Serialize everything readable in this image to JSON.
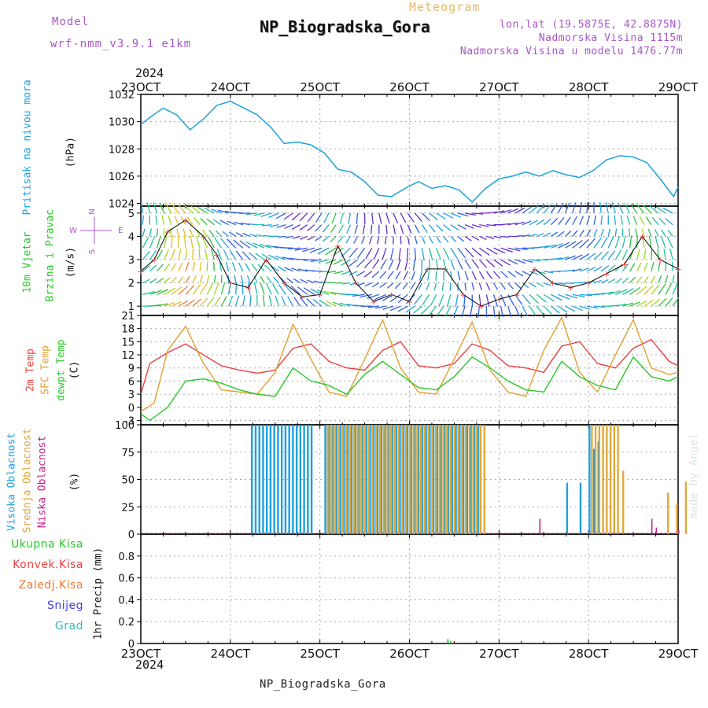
{
  "header": {
    "model_label": "Model",
    "model_name": "wrf-nmm_v3.9.1  e1km",
    "product": "Meteogram",
    "station": "NP_Biogradska_Gora",
    "coords": "lon,lat (19.5875E, 42.8875N)",
    "elevation": "Nadmorska Visina 1115m",
    "model_elevation": "Nadmorska Visina u modelu 1476.77m"
  },
  "time_axis": {
    "year": "2024",
    "labels": [
      "23OCT",
      "24OCT",
      "25OCT",
      "26OCT",
      "27OCT",
      "28OCT",
      "29OCT"
    ]
  },
  "footer": {
    "station": "NP_Biogradska_Gora",
    "credit": "made by Angel"
  },
  "panel_labels": {
    "pressure": "Pritisak na nivou mora",
    "pressure_unit": "(hPa)",
    "wind_a": "10m Vjetar",
    "wind_b": "Brzina i Pravac",
    "wind_unit": "(m/s)",
    "compass_n": "N",
    "compass_w": "W",
    "compass_e": "E",
    "compass_s": "S",
    "temp_2m": "2m Temp",
    "temp_sfc": "SFC Temp",
    "temp_dew": "dewpt Temp",
    "temp_unit": "(C)",
    "cloud_high": "Visoka Oblacnost",
    "cloud_mid": "Srednja Oblacnost",
    "cloud_low": "Niska Oblacnost",
    "cloud_unit": "(%)",
    "precip_axis": "1hr Precip (mm)",
    "precip_total": "Ukupna Kisa",
    "precip_conv": "Konvek.Kisa",
    "precip_frozen": "Zaledj.Kisa",
    "precip_snow": "Snijeg",
    "precip_hail": "Grad"
  },
  "colors": {
    "pressure": "#1aa3e0",
    "temp_2m": "#e84040",
    "temp_sfc": "#e0a030",
    "temp_dew": "#28c828",
    "cloud_high": "#1ea0e0",
    "cloud_mid": "#e0a83a",
    "cloud_low": "#c8208c",
    "precip_total": "#28c828",
    "precip_conv": "#e84040",
    "precip_frozen": "#f07830",
    "precip_snow": "#4040e0",
    "precip_hail": "#30c0b0",
    "purple": "#a855c8"
  },
  "chart_data": [
    {
      "type": "line",
      "panel": "pressure",
      "ylabel": "(hPa)",
      "ylim": [
        1023.8,
        1032
      ],
      "yticks": [
        1024,
        1026,
        1028,
        1030,
        1032
      ],
      "x_unit": "days since 23OCT 00Z",
      "series": [
        {
          "name": "Pritisak na nivou mora",
          "x": [
            0,
            0.1,
            0.25,
            0.4,
            0.55,
            0.7,
            0.85,
            1.0,
            1.15,
            1.3,
            1.45,
            1.6,
            1.75,
            1.9,
            2.05,
            2.2,
            2.35,
            2.5,
            2.65,
            2.8,
            2.95,
            3.1,
            3.25,
            3.4,
            3.55,
            3.7,
            3.85,
            4.0,
            4.15,
            4.3,
            4.45,
            4.6,
            4.75,
            4.9,
            5.05,
            5.2,
            5.35,
            5.5,
            5.65,
            5.8,
            5.95,
            6.0
          ],
          "values": [
            1029.8,
            1030.3,
            1031.0,
            1030.5,
            1029.4,
            1030.2,
            1031.2,
            1031.5,
            1031.0,
            1030.5,
            1029.6,
            1028.4,
            1028.5,
            1028.3,
            1027.7,
            1026.5,
            1026.3,
            1025.6,
            1024.6,
            1024.5,
            1025.1,
            1025.6,
            1025.1,
            1025.3,
            1025.0,
            1024.1,
            1025.1,
            1025.8,
            1026.0,
            1026.3,
            1026.0,
            1026.4,
            1026.1,
            1025.9,
            1026.4,
            1027.2,
            1027.5,
            1027.4,
            1027.0,
            1025.8,
            1024.5,
            1025.2
          ]
        }
      ]
    },
    {
      "type": "line",
      "panel": "wind",
      "ylabel": "(m/s)",
      "ylim": [
        0.6,
        5.3
      ],
      "yticks": [
        1,
        2,
        3,
        4,
        5
      ],
      "series": [
        {
          "name": "10m Vjetar",
          "x": [
            0,
            0.15,
            0.3,
            0.5,
            0.7,
            0.85,
            1.0,
            1.2,
            1.4,
            1.6,
            1.8,
            2.0,
            2.2,
            2.4,
            2.6,
            2.8,
            3.0,
            3.2,
            3.4,
            3.6,
            3.8,
            4.0,
            4.2,
            4.4,
            4.6,
            4.8,
            5.0,
            5.2,
            5.4,
            5.6,
            5.8,
            6.0
          ],
          "values": [
            2.5,
            3.0,
            4.2,
            4.7,
            4.0,
            3.2,
            2.0,
            1.8,
            3.0,
            2.0,
            1.4,
            1.5,
            3.6,
            2.0,
            1.2,
            1.5,
            1.2,
            2.6,
            2.6,
            1.5,
            1.0,
            1.3,
            1.5,
            2.6,
            2.0,
            1.8,
            2.0,
            2.4,
            2.8,
            4.0,
            3.0,
            2.6
          ]
        }
      ]
    },
    {
      "type": "line",
      "panel": "temperature",
      "ylabel": "(C)",
      "ylim": [
        -4,
        21
      ],
      "yticks": [
        -3,
        0,
        3,
        6,
        9,
        12,
        15,
        18,
        21
      ],
      "series": [
        {
          "name": "2m Temp",
          "x": [
            0,
            0.1,
            0.3,
            0.5,
            0.7,
            0.9,
            1.1,
            1.3,
            1.5,
            1.7,
            1.9,
            2.1,
            2.3,
            2.5,
            2.7,
            2.9,
            3.1,
            3.3,
            3.5,
            3.7,
            3.9,
            4.1,
            4.3,
            4.5,
            4.7,
            4.9,
            5.1,
            5.3,
            5.5,
            5.7,
            5.9,
            6.0
          ],
          "values": [
            3.0,
            10.0,
            12.5,
            14.5,
            12.0,
            9.5,
            8.5,
            7.8,
            8.5,
            13.5,
            14.5,
            10.5,
            9.0,
            8.5,
            13.0,
            15.0,
            9.5,
            9.0,
            10.0,
            14.5,
            13.0,
            9.5,
            9.0,
            8.0,
            14.0,
            15.0,
            10.0,
            9.0,
            13.5,
            15.5,
            10.5,
            9.5
          ]
        },
        {
          "name": "SFC Temp",
          "x": [
            0,
            0.15,
            0.3,
            0.5,
            0.7,
            0.9,
            1.1,
            1.3,
            1.5,
            1.7,
            1.9,
            2.1,
            2.3,
            2.5,
            2.7,
            2.9,
            3.1,
            3.3,
            3.5,
            3.7,
            3.9,
            4.1,
            4.3,
            4.5,
            4.7,
            4.9,
            5.1,
            5.3,
            5.5,
            5.7,
            5.9,
            6.0
          ],
          "values": [
            -1.0,
            1.0,
            13.0,
            18.5,
            10.0,
            4.0,
            3.5,
            3.0,
            8.0,
            19.0,
            11.0,
            3.5,
            2.5,
            11.0,
            20.0,
            9.0,
            3.5,
            3.0,
            11.0,
            19.5,
            8.5,
            3.5,
            2.5,
            13.0,
            20.5,
            8.0,
            3.5,
            12.0,
            20.0,
            9.0,
            7.5,
            8.0
          ]
        },
        {
          "name": "dewpt Temp",
          "x": [
            0,
            0.1,
            0.3,
            0.5,
            0.7,
            0.9,
            1.1,
            1.3,
            1.5,
            1.7,
            1.9,
            2.1,
            2.3,
            2.5,
            2.7,
            2.9,
            3.1,
            3.3,
            3.5,
            3.7,
            3.9,
            4.1,
            4.3,
            4.5,
            4.7,
            4.9,
            5.1,
            5.3,
            5.5,
            5.7,
            5.9,
            6.0
          ],
          "values": [
            -1.5,
            -3.0,
            0.0,
            6.0,
            6.5,
            5.5,
            4.0,
            3.0,
            2.5,
            9.0,
            6.0,
            5.0,
            3.0,
            7.5,
            10.5,
            7.5,
            4.5,
            4.0,
            7.0,
            11.5,
            9.0,
            6.0,
            4.0,
            3.5,
            10.5,
            7.0,
            5.0,
            4.0,
            11.5,
            7.0,
            6.0,
            7.0
          ]
        }
      ]
    },
    {
      "type": "bar",
      "panel": "clouds",
      "ylabel": "(%)",
      "ylim": [
        0,
        100
      ],
      "yticks": [
        0,
        25,
        50,
        75,
        100
      ],
      "series": [
        {
          "name": "Visoka Oblacnost",
          "ranges": [
            [
              1.23,
              1.92
            ],
            [
              2.05,
              3.78
            ]
          ],
          "value": 100,
          "extras": [
            [
              4.75,
              47
            ],
            [
              4.9,
              47
            ],
            [
              5.0,
              100
            ],
            [
              5.05,
              78
            ],
            [
              5.1,
              85
            ]
          ]
        },
        {
          "name": "Srednja Oblacnost",
          "ranges": [
            [
              2.05,
              3.8
            ],
            [
              5.0,
              5.3
            ]
          ],
          "value": 100,
          "extras": [
            [
              5.35,
              58
            ],
            [
              5.85,
              38
            ],
            [
              5.95,
              28
            ],
            [
              6.05,
              48
            ]
          ]
        },
        {
          "name": "Niska Oblacnost",
          "extras": [
            [
              4.45,
              14
            ],
            [
              5.7,
              14
            ],
            [
              5.75,
              6
            ],
            [
              6.0,
              4
            ]
          ]
        }
      ]
    },
    {
      "type": "bar",
      "panel": "precip",
      "ylabel": "1hr Precip (mm)",
      "ylim": [
        0,
        1.0
      ],
      "yticks": [
        0,
        0.2,
        0.4,
        0.6,
        0.8
      ],
      "series": [
        {
          "name": "Ukupna Kisa",
          "x": [
            3.42,
            3.45
          ],
          "values": [
            0.04,
            0.02
          ]
        },
        {
          "name": "Konvek.Kisa",
          "x": [
            3.5
          ],
          "values": [
            0.01
          ]
        }
      ]
    }
  ]
}
